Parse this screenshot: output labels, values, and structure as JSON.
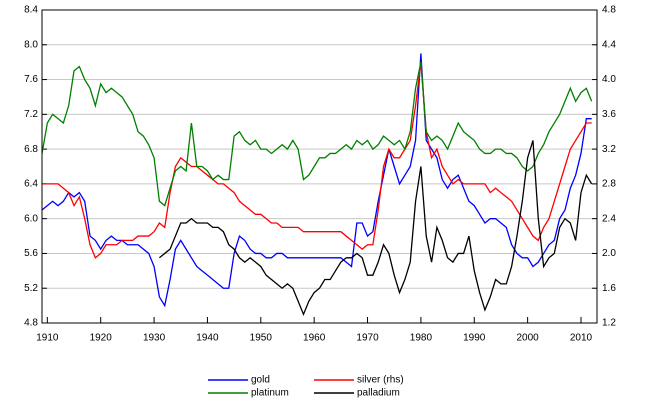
{
  "chart_data": {
    "type": "line",
    "x": [
      1909,
      1910,
      1911,
      1912,
      1913,
      1914,
      1915,
      1916,
      1917,
      1918,
      1919,
      1920,
      1921,
      1922,
      1923,
      1924,
      1925,
      1926,
      1927,
      1928,
      1929,
      1930,
      1931,
      1932,
      1933,
      1934,
      1935,
      1936,
      1937,
      1938,
      1939,
      1940,
      1941,
      1942,
      1943,
      1944,
      1945,
      1946,
      1947,
      1948,
      1949,
      1950,
      1951,
      1952,
      1953,
      1954,
      1955,
      1956,
      1957,
      1958,
      1959,
      1960,
      1961,
      1962,
      1963,
      1964,
      1965,
      1966,
      1967,
      1968,
      1969,
      1970,
      1971,
      1972,
      1973,
      1974,
      1975,
      1976,
      1977,
      1978,
      1979,
      1980,
      1981,
      1982,
      1983,
      1984,
      1985,
      1986,
      1987,
      1988,
      1989,
      1990,
      1991,
      1992,
      1993,
      1994,
      1995,
      1996,
      1997,
      1998,
      1999,
      2000,
      2001,
      2002,
      2003,
      2004,
      2005,
      2006,
      2007,
      2008,
      2009,
      2010,
      2011,
      2012
    ],
    "series": [
      {
        "name": "gold",
        "color": "#0000ff",
        "axis": "y",
        "values": [
          6.1,
          6.15,
          6.2,
          6.15,
          6.2,
          6.3,
          6.25,
          6.3,
          6.2,
          5.8,
          5.75,
          5.65,
          5.75,
          5.8,
          5.75,
          5.75,
          5.7,
          5.7,
          5.7,
          5.65,
          5.6,
          5.45,
          5.1,
          5.0,
          5.3,
          5.65,
          5.75,
          5.65,
          5.55,
          5.45,
          5.4,
          5.35,
          5.3,
          5.25,
          5.2,
          5.2,
          5.6,
          5.8,
          5.75,
          5.65,
          5.6,
          5.6,
          5.55,
          5.55,
          5.6,
          5.6,
          5.55,
          5.55,
          5.55,
          5.55,
          5.55,
          5.55,
          5.55,
          5.55,
          5.55,
          5.55,
          5.55,
          5.5,
          5.45,
          5.95,
          5.95,
          5.8,
          5.85,
          6.2,
          6.5,
          6.8,
          6.6,
          6.4,
          6.5,
          6.6,
          6.9,
          7.9,
          6.9,
          6.8,
          6.7,
          6.45,
          6.35,
          6.45,
          6.5,
          6.35,
          6.2,
          6.15,
          6.05,
          5.95,
          6.0,
          6.0,
          5.95,
          5.9,
          5.7,
          5.6,
          5.55,
          5.55,
          5.45,
          5.5,
          5.6,
          5.7,
          5.75,
          6.0,
          6.1,
          6.35,
          6.5,
          6.75,
          7.15,
          7.15
        ]
      },
      {
        "name": "silver (rhs)",
        "color": "#ff0000",
        "axis": "y2",
        "values": [
          2.8,
          2.8,
          2.8,
          2.8,
          2.75,
          2.7,
          2.55,
          2.65,
          2.4,
          2.1,
          1.95,
          2.0,
          2.1,
          2.1,
          2.1,
          2.15,
          2.15,
          2.15,
          2.2,
          2.2,
          2.2,
          2.25,
          2.35,
          2.3,
          2.7,
          3.0,
          3.1,
          3.05,
          3.0,
          3.0,
          2.95,
          2.9,
          2.85,
          2.8,
          2.8,
          2.75,
          2.7,
          2.6,
          2.55,
          2.5,
          2.45,
          2.45,
          2.4,
          2.35,
          2.35,
          2.3,
          2.3,
          2.3,
          2.3,
          2.25,
          2.25,
          2.25,
          2.25,
          2.25,
          2.25,
          2.25,
          2.25,
          2.2,
          2.15,
          2.1,
          2.05,
          2.1,
          2.1,
          2.5,
          3.0,
          3.2,
          3.1,
          3.1,
          3.2,
          3.3,
          3.7,
          4.2,
          3.4,
          3.1,
          3.2,
          3.0,
          2.9,
          2.8,
          2.85,
          2.8,
          2.8,
          2.8,
          2.8,
          2.8,
          2.7,
          2.75,
          2.7,
          2.65,
          2.6,
          2.5,
          2.4,
          2.3,
          2.2,
          2.15,
          2.3,
          2.4,
          2.6,
          2.8,
          3.0,
          3.2,
          3.3,
          3.4,
          3.5,
          3.5
        ]
      },
      {
        "name": "platinum",
        "color": "#008000",
        "axis": "y",
        "values": [
          6.75,
          7.1,
          7.2,
          7.15,
          7.1,
          7.3,
          7.7,
          7.75,
          7.6,
          7.5,
          7.3,
          7.55,
          7.45,
          7.5,
          7.45,
          7.4,
          7.3,
          7.2,
          7.0,
          6.95,
          6.85,
          6.7,
          6.2,
          6.15,
          6.35,
          6.55,
          6.6,
          6.55,
          7.1,
          6.6,
          6.6,
          6.55,
          6.45,
          6.5,
          6.45,
          6.45,
          6.95,
          7.0,
          6.9,
          6.85,
          6.9,
          6.8,
          6.8,
          6.75,
          6.8,
          6.85,
          6.8,
          6.9,
          6.8,
          6.45,
          6.5,
          6.6,
          6.7,
          6.7,
          6.75,
          6.75,
          6.8,
          6.85,
          6.8,
          6.9,
          6.85,
          6.9,
          6.8,
          6.85,
          6.95,
          6.9,
          6.85,
          6.9,
          6.8,
          7.0,
          7.5,
          7.8,
          7.0,
          6.9,
          6.95,
          6.9,
          6.8,
          6.95,
          7.1,
          7.0,
          6.95,
          6.9,
          6.8,
          6.75,
          6.75,
          6.8,
          6.8,
          6.75,
          6.75,
          6.7,
          6.6,
          6.55,
          6.6,
          6.75,
          6.85,
          7.0,
          7.1,
          7.2,
          7.35,
          7.5,
          7.35,
          7.45,
          7.5,
          7.35
        ]
      },
      {
        "name": "palladium",
        "color": "#000000",
        "axis": "y",
        "values": [
          null,
          null,
          null,
          null,
          null,
          null,
          null,
          null,
          null,
          null,
          null,
          null,
          null,
          null,
          null,
          null,
          null,
          null,
          null,
          null,
          null,
          null,
          5.55,
          5.6,
          5.65,
          5.8,
          5.95,
          5.95,
          6.0,
          5.95,
          5.95,
          5.95,
          5.9,
          5.9,
          5.85,
          5.7,
          5.65,
          5.55,
          5.5,
          5.55,
          5.5,
          5.45,
          5.35,
          5.3,
          5.25,
          5.2,
          5.25,
          5.2,
          5.05,
          4.9,
          5.05,
          5.15,
          5.2,
          5.3,
          5.3,
          5.4,
          5.5,
          5.55,
          5.55,
          5.6,
          5.55,
          5.35,
          5.35,
          5.5,
          5.7,
          5.6,
          5.35,
          5.15,
          5.3,
          5.5,
          6.2,
          6.6,
          5.8,
          5.5,
          5.9,
          5.75,
          5.55,
          5.5,
          5.6,
          5.6,
          5.8,
          5.4,
          5.15,
          4.95,
          5.1,
          5.3,
          5.25,
          5.25,
          5.45,
          5.8,
          6.2,
          6.7,
          6.9,
          6.0,
          5.45,
          5.55,
          5.6,
          5.9,
          6.0,
          5.95,
          5.75,
          6.3,
          6.5,
          6.4
        ]
      }
    ],
    "xlim": [
      1909,
      2013
    ],
    "xticks": [
      1910,
      1920,
      1930,
      1940,
      1950,
      1960,
      1970,
      1980,
      1990,
      2000,
      2010
    ],
    "ylim": [
      4.8,
      8.4
    ],
    "yticks": [
      4.8,
      5.2,
      5.6,
      {
        "value": 6.0,
        "label": "6.0"
      },
      6.4,
      6.8,
      7.2,
      7.6,
      {
        "value": 8.0,
        "label": "8.0"
      },
      8.4
    ],
    "y2lim": [
      1.2,
      4.8
    ],
    "y2ticks": [
      1.2,
      1.6,
      {
        "value": 2.0,
        "label": "2.0"
      },
      2.4,
      2.8,
      3.2,
      3.6,
      {
        "value": 4.0,
        "label": "4.0"
      },
      4.4,
      4.8
    ],
    "grid": true,
    "legend": "bottom"
  }
}
